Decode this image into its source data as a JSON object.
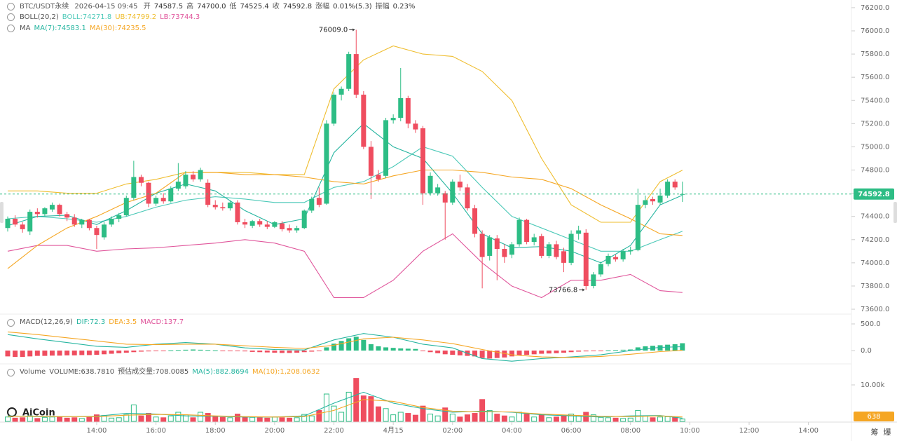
{
  "chart_data": {
    "type": "candlestick",
    "header": {
      "symbol": "BTC/USDT永续",
      "time": "2026-04-15 09:45",
      "fields": [
        {
          "label": "开",
          "value": "74587.5"
        },
        {
          "label": "高",
          "value": "74700.0"
        },
        {
          "label": "低",
          "value": "74525.4"
        },
        {
          "label": "收",
          "value": "74592.8"
        },
        {
          "label": "涨幅",
          "value": "0.01%(5.3)"
        },
        {
          "label": "振幅",
          "value": "0.23%"
        }
      ]
    },
    "up_color": "#2dbd85",
    "down_color": "#ef4d5f",
    "categories": [
      "11:00",
      "11:15",
      "11:30",
      "11:45",
      "12:00",
      "12:15",
      "12:30",
      "12:45",
      "13:00",
      "13:15",
      "13:30",
      "13:45",
      "14:00",
      "14:15",
      "14:30",
      "14:45",
      "15:00",
      "15:15",
      "15:30",
      "15:45",
      "16:00",
      "16:15",
      "16:30",
      "16:45",
      "17:00",
      "17:15",
      "17:30",
      "17:45",
      "18:00",
      "18:15",
      "18:30",
      "18:45",
      "19:00",
      "19:15",
      "19:30",
      "19:45",
      "20:00",
      "20:15",
      "20:30",
      "20:45",
      "21:00",
      "21:15",
      "21:30",
      "21:45",
      "22:00",
      "22:15",
      "22:30",
      "22:45",
      "23:00",
      "23:15",
      "23:30",
      "23:45",
      "00:00",
      "00:15",
      "00:30",
      "00:45",
      "01:00",
      "01:15",
      "01:30",
      "01:45",
      "02:00",
      "02:15",
      "02:30",
      "02:45",
      "03:00",
      "03:15",
      "03:30",
      "03:45",
      "04:00",
      "04:15",
      "04:30",
      "04:45",
      "05:00",
      "05:15",
      "05:30",
      "05:45",
      "06:00",
      "06:15",
      "06:30",
      "06:45",
      "07:00",
      "07:15",
      "07:30",
      "07:45",
      "08:00",
      "08:15",
      "08:30",
      "08:45",
      "09:00",
      "09:15",
      "09:30",
      "09:45"
    ],
    "open": [
      74300,
      74380,
      74330,
      74270,
      74440,
      74420,
      74460,
      74500,
      74420,
      74390,
      74330,
      74370,
      74300,
      74220,
      74330,
      74380,
      74410,
      74560,
      74740,
      74690,
      74510,
      74560,
      74530,
      74640,
      74660,
      74760,
      74720,
      74690,
      74500,
      74480,
      74470,
      74520,
      74350,
      74320,
      74360,
      74330,
      74310,
      74340,
      74300,
      74280,
      74300,
      74450,
      74560,
      74510,
      75200,
      75450,
      75500,
      75800,
      75450,
      75000,
      74760,
      74750,
      75230,
      75250,
      75420,
      75200,
      75160,
      74600,
      74600,
      74600,
      74520,
      74700,
      74650,
      74470,
      74250,
      74060,
      74210,
      74120,
      74070,
      74160,
      74370,
      74180,
      74230,
      74060,
      74160,
      74100,
      74000,
      74250,
      74260,
      73800,
      73900,
      73990,
      74050,
      74030,
      74100,
      74110,
      74500,
      74550,
      74520,
      74580,
      74700,
      74587.5
    ],
    "high": [
      74400,
      74410,
      74350,
      74460,
      74470,
      74480,
      74520,
      74510,
      74440,
      74420,
      74380,
      74380,
      74320,
      74350,
      74400,
      74430,
      74580,
      74880,
      74760,
      74700,
      74580,
      74600,
      74660,
      74860,
      74790,
      74790,
      74820,
      74720,
      74540,
      74520,
      74540,
      74540,
      74380,
      74370,
      74380,
      74360,
      74360,
      74360,
      74330,
      74320,
      74460,
      74570,
      74650,
      75230,
      75470,
      75520,
      75820,
      76009,
      75480,
      75050,
      74800,
      75250,
      75280,
      75680,
      75440,
      75230,
      75180,
      74780,
      74680,
      74620,
      74720,
      74760,
      74680,
      74500,
      74280,
      74240,
      74240,
      74160,
      74180,
      74390,
      74380,
      74250,
      74250,
      74180,
      74190,
      74130,
      74280,
      74320,
      74290,
      73920,
      74010,
      74080,
      74070,
      74120,
      74140,
      74640,
      74580,
      74570,
      74640,
      74720,
      74720,
      74700
    ],
    "low": [
      74270,
      74310,
      74260,
      74240,
      74390,
      74400,
      74440,
      74400,
      74360,
      74310,
      74300,
      74280,
      74120,
      74200,
      74310,
      74350,
      74400,
      74540,
      74660,
      74480,
      74490,
      74510,
      74520,
      74620,
      74640,
      74700,
      74700,
      74480,
      74460,
      74450,
      74450,
      74330,
      74300,
      74300,
      74310,
      74290,
      74300,
      74270,
      74260,
      74260,
      74290,
      74430,
      74480,
      74500,
      75180,
      75400,
      75480,
      75420,
      74980,
      74550,
      74700,
      74730,
      75200,
      75220,
      75160,
      75120,
      74500,
      74580,
      74580,
      74200,
      74500,
      74620,
      74450,
      74220,
      73780,
      74020,
      73850,
      74000,
      74040,
      74140,
      74160,
      74150,
      74040,
      74040,
      74030,
      73920,
      73980,
      74200,
      73766.8,
      73780,
      73880,
      73970,
      74010,
      74010,
      74070,
      74100,
      74470,
      74500,
      74500,
      74560,
      74630,
      74525.4
    ],
    "close": [
      74380,
      74330,
      74290,
      74440,
      74420,
      74470,
      74500,
      74420,
      74390,
      74330,
      74370,
      74300,
      74240,
      74330,
      74380,
      74410,
      74560,
      74740,
      74690,
      74510,
      74560,
      74530,
      74640,
      74700,
      74760,
      74720,
      74800,
      74500,
      74480,
      74470,
      74520,
      74350,
      74330,
      74360,
      74330,
      74310,
      74350,
      74290,
      74280,
      74300,
      74450,
      74550,
      74500,
      75200,
      75450,
      75500,
      75800,
      75450,
      75000,
      74750,
      74720,
      75230,
      75250,
      75420,
      75200,
      75150,
      74600,
      74750,
      74650,
      74520,
      74700,
      74650,
      74470,
      74250,
      74050,
      74220,
      74120,
      74050,
      74160,
      74370,
      74180,
      74220,
      74060,
      74160,
      74050,
      74000,
      74250,
      74280,
      73800,
      73900,
      73990,
      74060,
      74030,
      74100,
      74110,
      74500,
      74540,
      74530,
      74580,
      74700,
      74650,
      74592.8
    ],
    "ylim": [
      73564,
      76266
    ],
    "yticks": [
      {
        "value": 76200,
        "label": "76200.0"
      },
      {
        "value": 76000,
        "label": "76000.0"
      },
      {
        "value": 75800,
        "label": "75800.0"
      },
      {
        "value": 75600,
        "label": "75600.0"
      },
      {
        "value": 75400,
        "label": "75400.0"
      },
      {
        "value": 75200,
        "label": "75200.0"
      },
      {
        "value": 75000,
        "label": "75000.0"
      },
      {
        "value": 74800,
        "label": "74800.0"
      },
      {
        "value": 74600,
        "label": "74600.0"
      },
      {
        "value": 74400,
        "label": "74400.0"
      },
      {
        "value": 74200,
        "label": "74200.0"
      },
      {
        "value": 74000,
        "label": "74000.0"
      },
      {
        "value": 73800,
        "label": "73800.0"
      },
      {
        "value": 73600,
        "label": "73600.0"
      }
    ],
    "grid": false,
    "price_tag": {
      "value": 74592.8,
      "label": "74592.8"
    },
    "annotations": [
      {
        "at": "22:45",
        "value": 76009,
        "label": "76009.0"
      },
      {
        "at": "06:30",
        "value": 73766.8,
        "label": "73766.8"
      }
    ],
    "xticks": [
      "14:00",
      "16:00",
      "18:00",
      "20:00",
      "22:00",
      {
        "value": "00:00",
        "label": "4月15"
      },
      "02:00",
      "04:00",
      "06:00",
      "08:00",
      "10:00",
      "12:00",
      "14:00"
    ],
    "line_times": [
      "11:00",
      "12:00",
      "13:00",
      "14:00",
      "15:00",
      "16:00",
      "17:00",
      "18:00",
      "19:00",
      "20:00",
      "21:00",
      "22:00",
      "23:00",
      "00:00",
      "01:00",
      "02:00",
      "03:00",
      "04:00",
      "05:00",
      "06:00",
      "07:00",
      "08:00",
      "09:00",
      "09:45"
    ],
    "indicator_groups": [
      {
        "title": "BOLL(20,2)",
        "series": [
          {
            "label": "BOLL:74271.8",
            "color": "#4cc9b8",
            "values": [
              74380,
              74400,
              74380,
              74350,
              74400,
              74480,
              74540,
              74570,
              74550,
              74520,
              74520,
              74650,
              74700,
              74830,
              75000,
              74920,
              74650,
              74400,
              74300,
              74200,
              74100,
              74100,
              74200,
              74272
            ]
          },
          {
            "label": "UB:74799.2",
            "color": "#efbd2e",
            "values": [
              74620,
              74620,
              74600,
              74600,
              74680,
              74720,
              74780,
              74780,
              74780,
              74760,
              74760,
              75500,
              75750,
              75870,
              75800,
              75780,
              75650,
              75400,
              74900,
              74500,
              74350,
              74350,
              74700,
              74799
            ]
          },
          {
            "label": "LB:73744.3",
            "color": "#e0559b",
            "values": [
              74100,
              74150,
              74150,
              74100,
              74120,
              74130,
              74150,
              74170,
              74200,
              74170,
              74100,
              73700,
              73700,
              73850,
              74100,
              74250,
              74000,
              73800,
              73700,
              73850,
              73850,
              73900,
              73760,
              73744
            ]
          }
        ]
      },
      {
        "title": "MA",
        "series": [
          {
            "label": "MA(7):74583.1",
            "color": "#26b5a0",
            "values": [
              74320,
              74400,
              74410,
              74330,
              74450,
              74600,
              74680,
              74620,
              74450,
              74330,
              74380,
              74950,
              75200,
              75000,
              74900,
              74600,
              74250,
              74130,
              74140,
              74100,
              74000,
              74150,
              74500,
              74583
            ]
          },
          {
            "label": "MA(30):74235.5",
            "color": "#f5a623",
            "values": [
              73950,
              74150,
              74300,
              74400,
              74520,
              74600,
              74780,
              74780,
              74760,
              74760,
              74740,
              74700,
              74680,
              74750,
              74800,
              74800,
              74780,
              74740,
              74720,
              74640,
              74500,
              74380,
              74250,
              74236
            ]
          }
        ]
      }
    ],
    "macd": {
      "title": "MACD(12,26,9)",
      "ylim": [
        -237,
        658
      ],
      "yticks": [
        {
          "value": 500,
          "label": "500.0"
        },
        {
          "value": 0,
          "label": "0.0"
        }
      ],
      "lines": [
        {
          "label": "DIF:72.3",
          "color": "#26b5a0",
          "values": [
            300,
            220,
            150,
            80,
            60,
            120,
            150,
            120,
            50,
            20,
            10,
            200,
            320,
            250,
            120,
            50,
            -150,
            -200,
            -150,
            -120,
            -80,
            0,
            60,
            72
          ]
        },
        {
          "label": "DEA:3.5",
          "color": "#f5a623",
          "values": [
            350,
            300,
            240,
            180,
            120,
            110,
            120,
            120,
            90,
            60,
            40,
            100,
            220,
            250,
            200,
            130,
            20,
            -80,
            -120,
            -130,
            -110,
            -70,
            -20,
            3.5
          ]
        }
      ],
      "hist": {
        "label": "MACD:137.7",
        "color": "#e0559b",
        "values": [
          -110,
          -120,
          -120,
          -110,
          -100,
          -100,
          -95,
          -95,
          -90,
          -90,
          -85,
          -85,
          -80,
          -70,
          -60,
          -50,
          -40,
          -30,
          -20,
          -15,
          -10,
          -5,
          5,
          10,
          15,
          20,
          15,
          10,
          5,
          -2,
          -5,
          -10,
          -15,
          -25,
          -30,
          -35,
          -40,
          -45,
          -45,
          -40,
          -30,
          -20,
          -10,
          60,
          130,
          180,
          230,
          260,
          200,
          120,
          80,
          60,
          50,
          40,
          35,
          30,
          -10,
          -30,
          -50,
          -70,
          -80,
          -90,
          -100,
          -110,
          -140,
          -150,
          -140,
          -130,
          -110,
          -90,
          -80,
          -70,
          -60,
          -55,
          -50,
          -40,
          -30,
          -20,
          -15,
          -10,
          -5,
          5,
          10,
          15,
          20,
          60,
          80,
          90,
          100,
          110,
          120,
          137.7
        ]
      }
    },
    "volume": {
      "title": "Volume",
      "label": "VOLUME:638.7810",
      "estimate_label": "预估成交量:708.0085",
      "ylim": [
        0,
        15577
      ],
      "yticks": [
        {
          "value": 10000,
          "label": "10.00k"
        }
      ],
      "tag": {
        "value": 638,
        "label": "638",
        "color": "#f5a623"
      },
      "values": [
        1200,
        900,
        1000,
        1500,
        800,
        1100,
        1200,
        1300,
        900,
        1000,
        800,
        1100,
        1800,
        1600,
        900,
        1000,
        1800,
        4500,
        1500,
        2200,
        1200,
        1000,
        1500,
        2500,
        1800,
        1000,
        2500,
        2200,
        1300,
        1100,
        1000,
        2000,
        1200,
        1100,
        1000,
        900,
        1200,
        1000,
        900,
        1000,
        1900,
        1500,
        3000,
        7500,
        4200,
        2500,
        8000,
        11800,
        7000,
        6800,
        4000,
        3500,
        1800,
        2500,
        2200,
        1700,
        4200,
        2000,
        1500,
        3700,
        2000,
        1200,
        1800,
        2200,
        6000,
        3000,
        2000,
        1500,
        1200,
        2500,
        2000,
        1200,
        1800,
        1000,
        1200,
        1500,
        2000,
        1500,
        2500,
        1800,
        1100,
        1000,
        900,
        800,
        900,
        3000,
        1500,
        1000,
        1200,
        1300,
        1100,
        638.781
      ],
      "lines": [
        {
          "label": "MA(5):882.8694",
          "color": "#26b5a0",
          "values": [
            1500,
            1300,
            1300,
            1400,
            2200,
            2000,
            1500,
            1400,
            1200,
            1200,
            1500,
            5000,
            8000,
            5000,
            3500,
            2500,
            2800,
            2500,
            1800,
            1500,
            1200,
            1500,
            1600,
            883
          ]
        },
        {
          "label": "MA(10):1,208.0632",
          "color": "#f5a623",
          "values": [
            1400,
            1400,
            1300,
            1300,
            1700,
            1900,
            1800,
            1500,
            1300,
            1200,
            1300,
            3000,
            6000,
            5500,
            3800,
            2800,
            2600,
            2600,
            2000,
            1700,
            1400,
            1300,
            1500,
            1208
          ]
        }
      ]
    },
    "logo": "AiCoin",
    "corner_icons": [
      "筹",
      "爆"
    ]
  }
}
